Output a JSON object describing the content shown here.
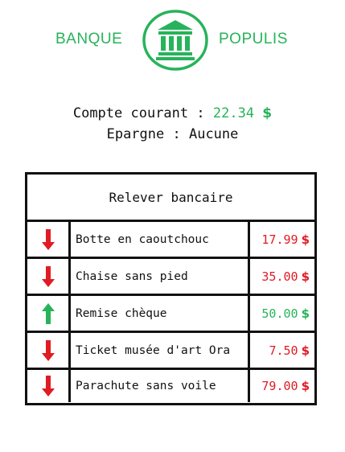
{
  "brand": {
    "left": "BANQUE",
    "right": "POPULIS",
    "logo_icon": "bank-icon",
    "color": "#27b35a"
  },
  "accounts": {
    "checking_label": "Compte courant :",
    "checking_amount": "22.34",
    "checking_currency": "$",
    "savings_label": "Epargne :",
    "savings_value": "Aucune"
  },
  "statement": {
    "title": "Relever bancaire",
    "rows": [
      {
        "direction": "down",
        "icon": "arrow-down-icon",
        "label": "Botte en caoutchouc",
        "amount": "17.99",
        "currency": "$"
      },
      {
        "direction": "down",
        "icon": "arrow-down-icon",
        "label": "Chaise sans pied",
        "amount": "35.00",
        "currency": "$"
      },
      {
        "direction": "up",
        "icon": "arrow-up-icon",
        "label": "Remise chèque",
        "amount": "50.00",
        "currency": "$"
      },
      {
        "direction": "down",
        "icon": "arrow-down-icon",
        "label": "Ticket musée d'art Ora",
        "amount": "7.50",
        "currency": "$"
      },
      {
        "direction": "down",
        "icon": "arrow-down-icon",
        "label": "Parachute sans voile",
        "amount": "79.00",
        "currency": "$"
      }
    ]
  },
  "colors": {
    "debit": "#e01b24",
    "credit": "#27b35a"
  }
}
